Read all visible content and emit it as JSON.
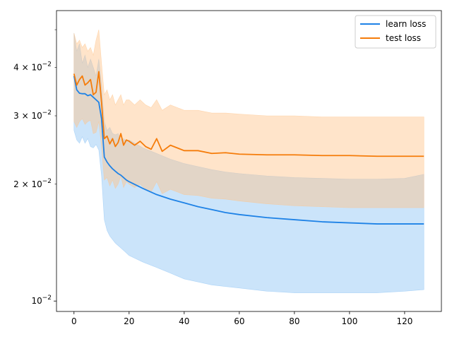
{
  "chart_data": {
    "type": "line",
    "title": "",
    "xlabel": "",
    "ylabel": "",
    "yscale": "log",
    "xlim": [
      -6.35,
      133.35
    ],
    "ylim": [
      0.0094,
      0.056
    ],
    "x_ticks": [
      0,
      20,
      40,
      60,
      80,
      100,
      120
    ],
    "x_tick_labels": [
      "0",
      "20",
      "40",
      "60",
      "80",
      "100",
      "120"
    ],
    "y_ticks": [
      0.01,
      0.02,
      0.03,
      0.04
    ],
    "y_tick_labels": [
      {
        "mantissa": "",
        "base": "10",
        "exp": "−2"
      },
      {
        "mantissa": "2 × ",
        "base": "10",
        "exp": "−2"
      },
      {
        "mantissa": "3 × ",
        "base": "10",
        "exp": "−2"
      },
      {
        "mantissa": "4 × ",
        "base": "10",
        "exp": "−2"
      }
    ],
    "legend": {
      "placement": "top-right"
    },
    "series": [
      {
        "name": "learn loss",
        "color": "#1f77b4",
        "line_color": "#1e82e6",
        "band_color": "#8cc3f5",
        "x": [
          0,
          1,
          2,
          3,
          4,
          5,
          6,
          7,
          8,
          9,
          10,
          11,
          12,
          13,
          14,
          15,
          16,
          17,
          18,
          19,
          20,
          25,
          30,
          35,
          40,
          45,
          50,
          55,
          60,
          70,
          80,
          90,
          100,
          110,
          120,
          127
        ],
        "values": [
          0.038,
          0.035,
          0.0343,
          0.0342,
          0.0342,
          0.0338,
          0.034,
          0.0335,
          0.033,
          0.0325,
          0.0295,
          0.0235,
          0.0228,
          0.0223,
          0.0219,
          0.0216,
          0.0213,
          0.0211,
          0.0208,
          0.0205,
          0.0203,
          0.0195,
          0.0188,
          0.0183,
          0.0179,
          0.0175,
          0.0172,
          0.0169,
          0.0167,
          0.0164,
          0.0162,
          0.016,
          0.0159,
          0.0158,
          0.0158,
          0.0158
        ],
        "upper": [
          0.049,
          0.044,
          0.046,
          0.041,
          0.043,
          0.04,
          0.042,
          0.04,
          0.038,
          0.042,
          0.036,
          0.029,
          0.0275,
          0.028,
          0.027,
          0.0268,
          0.027,
          0.026,
          0.0262,
          0.0258,
          0.026,
          0.0248,
          0.024,
          0.0232,
          0.0226,
          0.0222,
          0.0218,
          0.0215,
          0.0213,
          0.021,
          0.0208,
          0.0207,
          0.0206,
          0.0206,
          0.0207,
          0.0212
        ],
        "lower": [
          0.0275,
          0.026,
          0.0255,
          0.0265,
          0.0255,
          0.0262,
          0.025,
          0.0248,
          0.0253,
          0.0245,
          0.021,
          0.0162,
          0.0152,
          0.0147,
          0.0144,
          0.0141,
          0.0139,
          0.0137,
          0.0135,
          0.0133,
          0.0131,
          0.0126,
          0.0122,
          0.0118,
          0.0114,
          0.0112,
          0.011,
          0.0109,
          0.0108,
          0.0106,
          0.0105,
          0.0105,
          0.0105,
          0.0105,
          0.0106,
          0.0107
        ]
      },
      {
        "name": "test loss",
        "color": "#ff7f0e",
        "line_color": "#f57c0a",
        "band_color": "#ffc48a",
        "x": [
          0,
          1,
          2,
          3,
          4,
          5,
          6,
          7,
          8,
          9,
          10,
          11,
          12,
          13,
          14,
          15,
          16,
          17,
          18,
          19,
          20,
          22,
          24,
          26,
          28,
          30,
          32,
          35,
          40,
          45,
          50,
          55,
          60,
          70,
          80,
          90,
          100,
          110,
          120,
          127
        ],
        "values": [
          0.0385,
          0.036,
          0.0372,
          0.038,
          0.036,
          0.0365,
          0.0372,
          0.034,
          0.0345,
          0.039,
          0.0325,
          0.0262,
          0.0266,
          0.0254,
          0.0262,
          0.025,
          0.0256,
          0.027,
          0.0252,
          0.026,
          0.0258,
          0.0252,
          0.0258,
          0.025,
          0.0246,
          0.0262,
          0.0243,
          0.0252,
          0.0244,
          0.0244,
          0.024,
          0.0241,
          0.0239,
          0.0238,
          0.0238,
          0.0237,
          0.0237,
          0.0236,
          0.0236,
          0.0236
        ],
        "upper": [
          0.049,
          0.046,
          0.047,
          0.045,
          0.046,
          0.044,
          0.045,
          0.043,
          0.047,
          0.05,
          0.041,
          0.034,
          0.035,
          0.033,
          0.034,
          0.032,
          0.033,
          0.034,
          0.032,
          0.033,
          0.033,
          0.032,
          0.033,
          0.032,
          0.0315,
          0.033,
          0.031,
          0.032,
          0.031,
          0.031,
          0.0305,
          0.0305,
          0.0303,
          0.03,
          0.03,
          0.0298,
          0.0298,
          0.0298,
          0.0298,
          0.0298
        ],
        "lower": [
          0.029,
          0.028,
          0.029,
          0.0295,
          0.0285,
          0.029,
          0.0292,
          0.027,
          0.0272,
          0.029,
          0.025,
          0.0205,
          0.0208,
          0.0198,
          0.0205,
          0.0195,
          0.02,
          0.021,
          0.0196,
          0.0203,
          0.02,
          0.0196,
          0.02,
          0.0194,
          0.0191,
          0.0203,
          0.0189,
          0.0194,
          0.0188,
          0.0187,
          0.0184,
          0.0183,
          0.0181,
          0.0178,
          0.0176,
          0.0175,
          0.0174,
          0.0174,
          0.0174,
          0.0174
        ]
      }
    ]
  }
}
